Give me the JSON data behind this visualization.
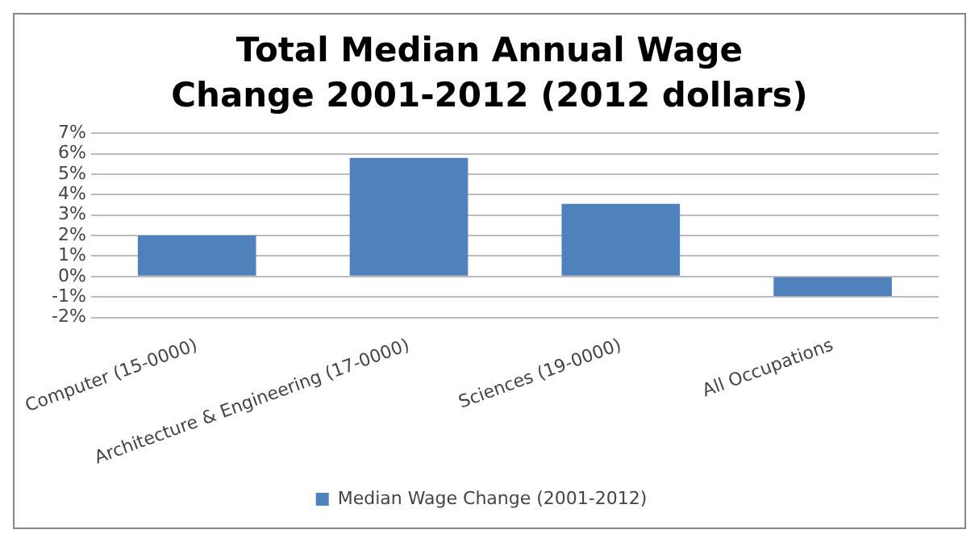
{
  "chart_data": {
    "type": "bar",
    "title": "Total Median Annual Wage Change 2001-2012 (2012 dollars)",
    "categories": [
      "Computer (15-0000)",
      "Architecture & Engineering (17-0000)",
      "Sciences (19-0000)",
      "All Occupations"
    ],
    "series": [
      {
        "name": "Median Wage Change (2001-2012)",
        "color": "#4f81bd",
        "values": [
          2.0,
          5.8,
          3.55,
          -0.95
        ]
      }
    ],
    "ylim": [
      -2,
      7
    ],
    "yticks": [
      {
        "value": -2,
        "label": "-2%"
      },
      {
        "value": -1,
        "label": "-1%"
      },
      {
        "value": 0,
        "label": "0%"
      },
      {
        "value": 1,
        "label": "1%"
      },
      {
        "value": 2,
        "label": "2%"
      },
      {
        "value": 3,
        "label": "3%"
      },
      {
        "value": 4,
        "label": "4%"
      },
      {
        "value": 5,
        "label": "5%"
      },
      {
        "value": 6,
        "label": "6%"
      },
      {
        "value": 7,
        "label": "7%"
      }
    ],
    "grid": "y",
    "legend": "bottom"
  }
}
